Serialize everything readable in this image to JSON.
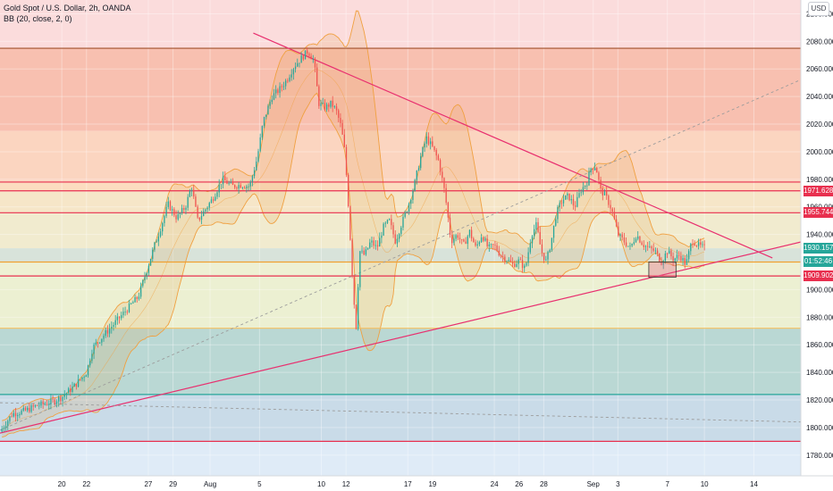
{
  "header": {
    "symbol_line": "Gold Spot / U.S. Dollar, 2h, OANDA",
    "indicator_line": "BB (20, close, 2, 0)",
    "currency_button": "USD"
  },
  "price_tags": [
    {
      "label": "1971.628",
      "value": 1971.628,
      "color": "#e8304f"
    },
    {
      "label": "1955.744",
      "value": 1955.744,
      "color": "#e8304f"
    },
    {
      "label": "1930.157",
      "value": 1930.157,
      "color": "#26a69a"
    },
    {
      "label": "01:52:46",
      "value": 1920.5,
      "color": "#26a69a"
    },
    {
      "label": "1909.902",
      "value": 1909.902,
      "color": "#e8304f"
    }
  ],
  "chart_data": {
    "type": "candlestick",
    "y_range": [
      1765,
      2110
    ],
    "y_ticks": [
      {
        "value": 1780,
        "label": "1780.000"
      },
      {
        "value": 1800,
        "label": "1800.000"
      },
      {
        "value": 1820,
        "label": "1820.000"
      },
      {
        "value": 1840,
        "label": "1840.000"
      },
      {
        "value": 1860,
        "label": "1860.000"
      },
      {
        "value": 1880,
        "label": "1880.000"
      },
      {
        "value": 1900,
        "label": "1900.000"
      },
      {
        "value": 1920,
        "label": "1920.000"
      },
      {
        "value": 1940,
        "label": "1940.000"
      },
      {
        "value": 1960,
        "label": "1960.000"
      },
      {
        "value": 1980,
        "label": "1980.000"
      },
      {
        "value": 2000,
        "label": "2000.000"
      },
      {
        "value": 2020,
        "label": "2020.000"
      },
      {
        "value": 2040,
        "label": "2040.000"
      },
      {
        "value": 2060,
        "label": "2060.000"
      },
      {
        "value": 2080,
        "label": "2080.000"
      },
      {
        "value": 2100,
        "label": "2100.000"
      }
    ],
    "x_ticks": [
      {
        "label": "20",
        "t": 20
      },
      {
        "label": "22",
        "t": 22
      },
      {
        "label": "27",
        "t": 27
      },
      {
        "label": "29",
        "t": 29
      },
      {
        "label": "Aug",
        "t": 32
      },
      {
        "label": "5",
        "t": 36
      },
      {
        "label": "10",
        "t": 41
      },
      {
        "label": "12",
        "t": 43
      },
      {
        "label": "17",
        "t": 48
      },
      {
        "label": "19",
        "t": 50
      },
      {
        "label": "24",
        "t": 55
      },
      {
        "label": "26",
        "t": 57
      },
      {
        "label": "28",
        "t": 59
      },
      {
        "label": "Sep",
        "t": 63
      },
      {
        "label": "3",
        "t": 65
      },
      {
        "label": "7",
        "t": 69
      },
      {
        "label": "10",
        "t": 72
      },
      {
        "label": "14",
        "t": 76
      }
    ],
    "zones": [
      {
        "from": 2075,
        "to": 2110,
        "color": "#fbdcdc"
      },
      {
        "from": 2015,
        "to": 2075,
        "color": "#f8c0b0"
      },
      {
        "from": 1978,
        "to": 2015,
        "color": "#fbd5c0"
      },
      {
        "from": 1971,
        "to": 1978,
        "color": "#fcdcc0"
      },
      {
        "from": 1955,
        "to": 1971,
        "color": "#f6e6c8"
      },
      {
        "from": 1930,
        "to": 1955,
        "color": "#f1ebcf"
      },
      {
        "from": 1920,
        "to": 1930,
        "color": "#d8e3da"
      },
      {
        "from": 1910,
        "to": 1920,
        "color": "#eef0d3"
      },
      {
        "from": 1872,
        "to": 1910,
        "color": "#ecf0d2"
      },
      {
        "from": 1824,
        "to": 1872,
        "color": "#bad8d4"
      },
      {
        "from": 1790,
        "to": 1824,
        "color": "#c9dbe8"
      },
      {
        "from": 1765,
        "to": 1790,
        "color": "#dfebf7"
      }
    ],
    "levels": [
      {
        "value": 2075,
        "color": "#a0522d"
      },
      {
        "value": 1978,
        "color": "#e8304f"
      },
      {
        "value": 1971.628,
        "color": "#e8304f"
      },
      {
        "value": 1955.744,
        "color": "#e8304f"
      },
      {
        "value": 1920,
        "color": "#f0a030"
      },
      {
        "value": 1909.902,
        "color": "#e8304f"
      },
      {
        "value": 1872,
        "color": "#f5c060"
      },
      {
        "value": 1824,
        "color": "#26a69a"
      },
      {
        "value": 1790,
        "color": "#e8304f"
      }
    ],
    "trendlines": [
      {
        "t1": 35.5,
        "p1": 2086,
        "t2": 77.5,
        "p2": 1923,
        "color": "#e8306f",
        "dashed": false
      },
      {
        "t1": 15,
        "p1": 1796,
        "t2": 80,
        "p2": 1935,
        "color": "#e8306f",
        "dashed": false
      },
      {
        "t1": 15,
        "p1": 1798,
        "t2": 80,
        "p2": 2053,
        "color": "#9c9c9c",
        "dashed": true
      },
      {
        "t1": 15,
        "p1": 1818,
        "t2": 80,
        "p2": 1804,
        "color": "#9c9c9c",
        "dashed": true
      }
    ],
    "boxes": [
      {
        "t1": 67.5,
        "p1": 1920,
        "t2": 69.7,
        "p2": 1909,
        "color": "#e06080"
      }
    ],
    "price_path": [
      {
        "t": 15.0,
        "p": 1797
      },
      {
        "t": 16.0,
        "p": 1810
      },
      {
        "t": 17.0,
        "p": 1812
      },
      {
        "t": 18.0,
        "p": 1816
      },
      {
        "t": 19.0,
        "p": 1818
      },
      {
        "t": 20.0,
        "p": 1822
      },
      {
        "t": 21.0,
        "p": 1830
      },
      {
        "t": 22.0,
        "p": 1840
      },
      {
        "t": 22.5,
        "p": 1858
      },
      {
        "t": 23.5,
        "p": 1868
      },
      {
        "t": 24.5,
        "p": 1878
      },
      {
        "t": 25.5,
        "p": 1888
      },
      {
        "t": 26.2,
        "p": 1895
      },
      {
        "t": 26.8,
        "p": 1912
      },
      {
        "t": 27.5,
        "p": 1932
      },
      {
        "t": 28.0,
        "p": 1945
      },
      {
        "t": 28.6,
        "p": 1962
      },
      {
        "t": 29.3,
        "p": 1952
      },
      {
        "t": 30.0,
        "p": 1960
      },
      {
        "t": 30.5,
        "p": 1975
      },
      {
        "t": 31.0,
        "p": 1950
      },
      {
        "t": 31.6,
        "p": 1958
      },
      {
        "t": 32.2,
        "p": 1966
      },
      {
        "t": 33.0,
        "p": 1980
      },
      {
        "t": 33.8,
        "p": 1975
      },
      {
        "t": 34.5,
        "p": 1976
      },
      {
        "t": 35.2,
        "p": 1975
      },
      {
        "t": 35.8,
        "p": 1995
      },
      {
        "t": 36.3,
        "p": 2022
      },
      {
        "t": 37.0,
        "p": 2040
      },
      {
        "t": 37.6,
        "p": 2045
      },
      {
        "t": 38.2,
        "p": 2052
      },
      {
        "t": 38.8,
        "p": 2062
      },
      {
        "t": 39.4,
        "p": 2068
      },
      {
        "t": 39.9,
        "p": 2073
      },
      {
        "t": 40.4,
        "p": 2066
      },
      {
        "t": 40.8,
        "p": 2035
      },
      {
        "t": 41.3,
        "p": 2032
      },
      {
        "t": 41.8,
        "p": 2035
      },
      {
        "t": 42.2,
        "p": 2030
      },
      {
        "t": 42.6,
        "p": 2018
      },
      {
        "t": 42.9,
        "p": 2000
      },
      {
        "t": 43.2,
        "p": 1960
      },
      {
        "t": 43.5,
        "p": 1912
      },
      {
        "t": 43.8,
        "p": 1870
      },
      {
        "t": 44.1,
        "p": 1928
      },
      {
        "t": 44.5,
        "p": 1925
      },
      {
        "t": 45.0,
        "p": 1935
      },
      {
        "t": 45.5,
        "p": 1930
      },
      {
        "t": 46.0,
        "p": 1945
      },
      {
        "t": 46.5,
        "p": 1950
      },
      {
        "t": 47.0,
        "p": 1935
      },
      {
        "t": 47.5,
        "p": 1948
      },
      {
        "t": 48.0,
        "p": 1960
      },
      {
        "t": 48.5,
        "p": 1975
      },
      {
        "t": 49.0,
        "p": 1995
      },
      {
        "t": 49.5,
        "p": 2010
      },
      {
        "t": 50.0,
        "p": 2003
      },
      {
        "t": 50.5,
        "p": 1993
      },
      {
        "t": 51.0,
        "p": 1970
      },
      {
        "t": 51.5,
        "p": 1935
      },
      {
        "t": 52.0,
        "p": 1940
      },
      {
        "t": 52.5,
        "p": 1932
      },
      {
        "t": 53.0,
        "p": 1942
      },
      {
        "t": 53.5,
        "p": 1930
      },
      {
        "t": 54.0,
        "p": 1940
      },
      {
        "t": 54.5,
        "p": 1930
      },
      {
        "t": 55.0,
        "p": 1932
      },
      {
        "t": 55.5,
        "p": 1925
      },
      {
        "t": 56.0,
        "p": 1922
      },
      {
        "t": 56.5,
        "p": 1918
      },
      {
        "t": 57.0,
        "p": 1921
      },
      {
        "t": 57.5,
        "p": 1915
      },
      {
        "t": 58.0,
        "p": 1940
      },
      {
        "t": 58.4,
        "p": 1947
      },
      {
        "t": 58.8,
        "p": 1928
      },
      {
        "t": 59.2,
        "p": 1920
      },
      {
        "t": 59.6,
        "p": 1935
      },
      {
        "t": 60.0,
        "p": 1955
      },
      {
        "t": 60.5,
        "p": 1965
      },
      {
        "t": 61.0,
        "p": 1968
      },
      {
        "t": 61.5,
        "p": 1960
      },
      {
        "t": 62.0,
        "p": 1972
      },
      {
        "t": 62.5,
        "p": 1978
      },
      {
        "t": 62.8,
        "p": 1988
      },
      {
        "t": 63.2,
        "p": 1990
      },
      {
        "t": 63.6,
        "p": 1972
      },
      {
        "t": 64.0,
        "p": 1968
      },
      {
        "t": 64.5,
        "p": 1958
      },
      {
        "t": 65.0,
        "p": 1940
      },
      {
        "t": 65.5,
        "p": 1935
      },
      {
        "t": 66.0,
        "p": 1930
      },
      {
        "t": 66.5,
        "p": 1940
      },
      {
        "t": 67.0,
        "p": 1933
      },
      {
        "t": 67.5,
        "p": 1930
      },
      {
        "t": 68.0,
        "p": 1928
      },
      {
        "t": 68.5,
        "p": 1920
      },
      {
        "t": 69.0,
        "p": 1928
      },
      {
        "t": 69.5,
        "p": 1922
      },
      {
        "t": 70.0,
        "p": 1925
      },
      {
        "t": 70.5,
        "p": 1918
      },
      {
        "t": 71.0,
        "p": 1936
      },
      {
        "t": 71.5,
        "p": 1932
      },
      {
        "t": 72.0,
        "p": 1930.157
      }
    ]
  }
}
